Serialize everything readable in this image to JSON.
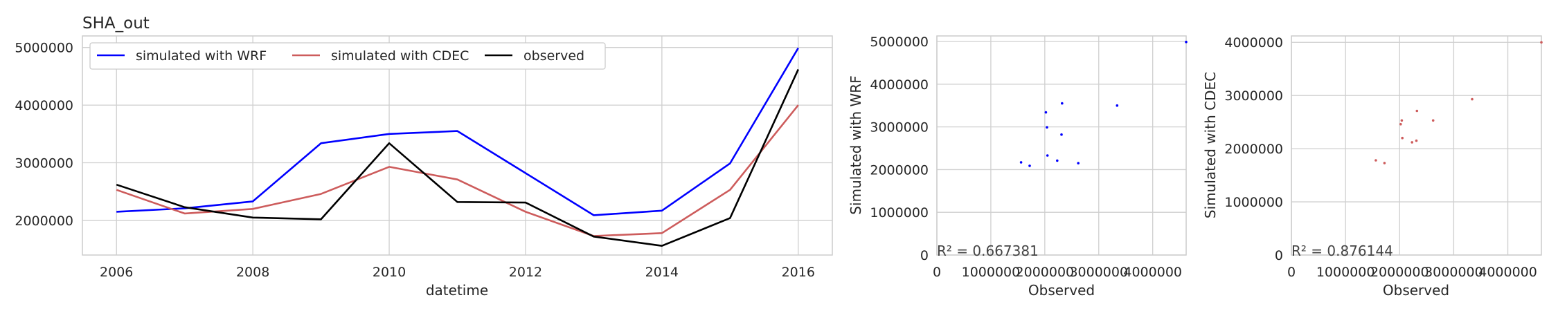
{
  "chart_data": [
    {
      "type": "line",
      "title": "SHA_out",
      "xlabel": "datetime",
      "ylabel": "",
      "x": [
        2006,
        2007,
        2008,
        2009,
        2010,
        2011,
        2012,
        2013,
        2014,
        2015,
        2016
      ],
      "xticks": [
        "2006",
        "2008",
        "2010",
        "2012",
        "2014",
        "2016"
      ],
      "yticks": [
        "2000000",
        "3000000",
        "4000000",
        "5000000"
      ],
      "xlim": [
        2005.5,
        2016.5
      ],
      "ylim": [
        1400000,
        5200000
      ],
      "grid": true,
      "legend": "top-left",
      "series": [
        {
          "name": "simulated with WRF",
          "color": "#0000ff",
          "values": [
            2150000,
            2210000,
            2330000,
            3340000,
            3500000,
            3550000,
            2820000,
            2090000,
            2170000,
            2990000,
            4990000
          ]
        },
        {
          "name": "simulated with CDEC",
          "color": "#cd5c5c",
          "values": [
            2530000,
            2120000,
            2200000,
            2460000,
            2930000,
            2710000,
            2150000,
            1730000,
            1780000,
            2530000,
            4000000
          ]
        },
        {
          "name": "observed",
          "color": "#000000",
          "values": [
            2620000,
            2230000,
            2050000,
            2020000,
            3340000,
            2320000,
            2310000,
            1720000,
            1560000,
            2040000,
            4620000
          ]
        }
      ]
    },
    {
      "type": "scatter",
      "title": "",
      "xlabel": "Observed",
      "ylabel": "Simulated with WRF",
      "xticks": [
        "0",
        "1000000",
        "2000000",
        "3000000",
        "4000000"
      ],
      "yticks": [
        "0",
        "1000000",
        "2000000",
        "3000000",
        "4000000",
        "5000000"
      ],
      "xlim": [
        0,
        4620000
      ],
      "ylim": [
        0,
        5130000
      ],
      "grid": true,
      "color": "#0000ff",
      "annotation": "R² = 0.667381",
      "points": [
        {
          "x": 1560000,
          "y": 2170000
        },
        {
          "x": 1720000,
          "y": 2090000
        },
        {
          "x": 2020000,
          "y": 3340000
        },
        {
          "x": 2050000,
          "y": 2330000
        },
        {
          "x": 2040000,
          "y": 2990000
        },
        {
          "x": 2230000,
          "y": 2210000
        },
        {
          "x": 2310000,
          "y": 2820000
        },
        {
          "x": 2320000,
          "y": 3550000
        },
        {
          "x": 2620000,
          "y": 2150000
        },
        {
          "x": 3340000,
          "y": 3500000
        },
        {
          "x": 4620000,
          "y": 4990000
        }
      ]
    },
    {
      "type": "scatter",
      "title": "",
      "xlabel": "Observed",
      "ylabel": "Simulated with CDEC",
      "xticks": [
        "0",
        "1000000",
        "2000000",
        "3000000",
        "4000000"
      ],
      "yticks": [
        "0",
        "1000000",
        "2000000",
        "3000000",
        "4000000"
      ],
      "xlim": [
        0,
        4620000
      ],
      "ylim": [
        0,
        4120000
      ],
      "grid": true,
      "color": "#cd5c5c",
      "annotation": "R² = 0.876144",
      "points": [
        {
          "x": 1560000,
          "y": 1780000
        },
        {
          "x": 1720000,
          "y": 1730000
        },
        {
          "x": 2020000,
          "y": 2460000
        },
        {
          "x": 2040000,
          "y": 2530000
        },
        {
          "x": 2050000,
          "y": 2200000
        },
        {
          "x": 2230000,
          "y": 2120000
        },
        {
          "x": 2310000,
          "y": 2150000
        },
        {
          "x": 2320000,
          "y": 2710000
        },
        {
          "x": 2620000,
          "y": 2530000
        },
        {
          "x": 3340000,
          "y": 2930000
        },
        {
          "x": 4620000,
          "y": 4000000
        }
      ]
    }
  ]
}
